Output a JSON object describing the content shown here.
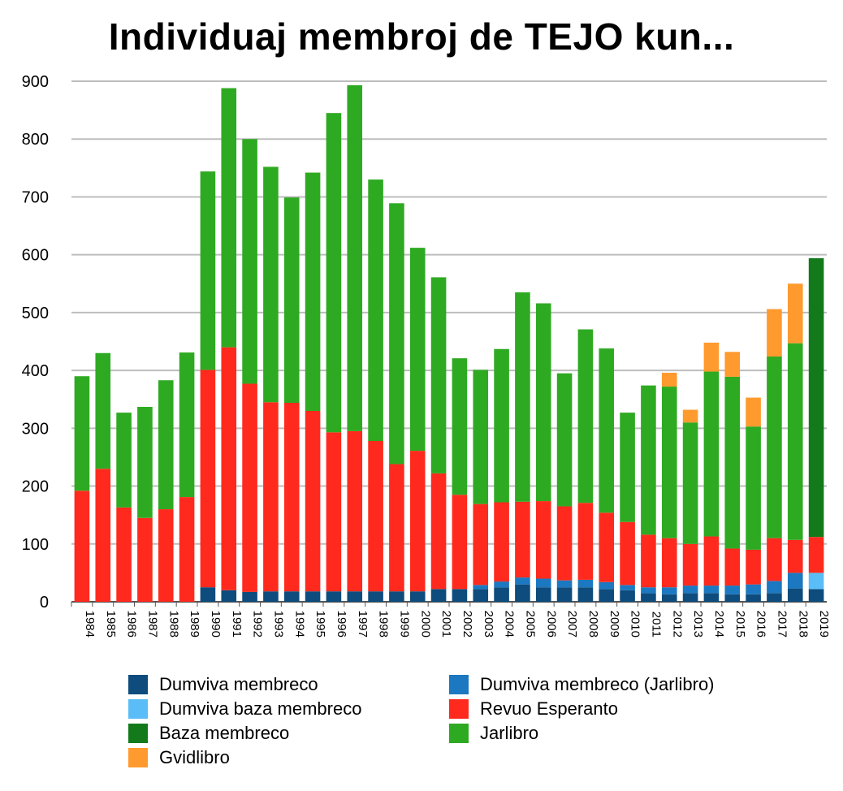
{
  "chart_data": {
    "type": "bar",
    "stacked": true,
    "title": "Individuaj membroj de TEJO kun...",
    "ylim": [
      0,
      900
    ],
    "yticks": [
      0,
      100,
      200,
      300,
      400,
      500,
      600,
      700,
      800,
      900
    ],
    "grid": true,
    "legend_position": "bottom",
    "categories": [
      "1984",
      "1985",
      "1986",
      "1987",
      "1988",
      "1989",
      "1990",
      "1991",
      "1992",
      "1993",
      "1994",
      "1995",
      "1996",
      "1997",
      "1998",
      "1999",
      "2000",
      "2001",
      "2002",
      "2003",
      "2004",
      "2005",
      "2006",
      "2007",
      "2008",
      "2009",
      "2010",
      "2011",
      "2012",
      "2013",
      "2014",
      "2015",
      "2016",
      "2017",
      "2018",
      "2019"
    ],
    "series": [
      {
        "name": "Dumviva membreco",
        "color": "#0d4c7d",
        "values": [
          0,
          0,
          0,
          0,
          0,
          0,
          25,
          20,
          17,
          18,
          18,
          18,
          18,
          18,
          18,
          18,
          18,
          22,
          22,
          22,
          25,
          30,
          25,
          25,
          25,
          22,
          20,
          15,
          13,
          15,
          15,
          13,
          13,
          15,
          23,
          22
        ]
      },
      {
        "name": "Dumviva membreco (Jarlibro)",
        "color": "#1c78c0",
        "values": [
          0,
          0,
          0,
          0,
          0,
          0,
          0,
          0,
          0,
          0,
          0,
          0,
          0,
          0,
          0,
          0,
          0,
          0,
          0,
          7,
          10,
          12,
          15,
          12,
          13,
          12,
          9,
          10,
          12,
          13,
          13,
          15,
          17,
          21,
          27,
          0
        ]
      },
      {
        "name": "Dumviva baza membreco",
        "color": "#5bbdf7",
        "values": [
          0,
          0,
          0,
          0,
          0,
          0,
          0,
          0,
          0,
          0,
          0,
          0,
          0,
          0,
          0,
          0,
          0,
          0,
          0,
          0,
          0,
          0,
          0,
          0,
          0,
          0,
          0,
          0,
          0,
          0,
          0,
          0,
          0,
          0,
          0,
          28
        ]
      },
      {
        "name": "Revuo Esperanto",
        "color": "#ff2a1d",
        "values": [
          192,
          230,
          163,
          145,
          160,
          181,
          376,
          420,
          360,
          327,
          326,
          312,
          275,
          277,
          260,
          220,
          243,
          200,
          163,
          140,
          137,
          131,
          134,
          128,
          133,
          120,
          109,
          91,
          85,
          72,
          85,
          64,
          60,
          74,
          57,
          62
        ]
      },
      {
        "name": "Baza membreco",
        "color": "#137a1c",
        "values": [
          0,
          0,
          0,
          0,
          0,
          0,
          0,
          0,
          0,
          0,
          0,
          0,
          0,
          0,
          0,
          0,
          0,
          0,
          0,
          0,
          0,
          0,
          0,
          0,
          0,
          0,
          0,
          0,
          0,
          0,
          0,
          0,
          0,
          0,
          0,
          482
        ]
      },
      {
        "name": "Jarlibro",
        "color": "#2eaa22",
        "values": [
          198,
          200,
          164,
          192,
          223,
          250,
          343,
          448,
          423,
          407,
          355,
          412,
          552,
          598,
          452,
          451,
          351,
          339,
          236,
          232,
          265,
          362,
          342,
          230,
          300,
          284,
          189,
          258,
          262,
          210,
          285,
          297,
          213,
          314,
          340,
          0
        ]
      },
      {
        "name": "Gvidlibro",
        "color": "#ff9a2e",
        "values": [
          0,
          0,
          0,
          0,
          0,
          0,
          0,
          0,
          0,
          0,
          0,
          0,
          0,
          0,
          0,
          0,
          0,
          0,
          0,
          0,
          0,
          0,
          0,
          0,
          0,
          0,
          0,
          0,
          24,
          22,
          50,
          43,
          50,
          82,
          103,
          0
        ]
      }
    ],
    "legend": [
      {
        "label": "Dumviva membreco",
        "color": "#0d4c7d"
      },
      {
        "label": "Dumviva membreco (Jarlibro)",
        "color": "#1c78c0"
      },
      {
        "label": "Dumviva baza membreco",
        "color": "#5bbdf7"
      },
      {
        "label": "Revuo Esperanto",
        "color": "#ff2a1d"
      },
      {
        "label": "Baza membreco",
        "color": "#137a1c"
      },
      {
        "label": "Jarlibro",
        "color": "#2eaa22"
      },
      {
        "label": "Gvidlibro",
        "color": "#ff9a2e"
      }
    ]
  }
}
